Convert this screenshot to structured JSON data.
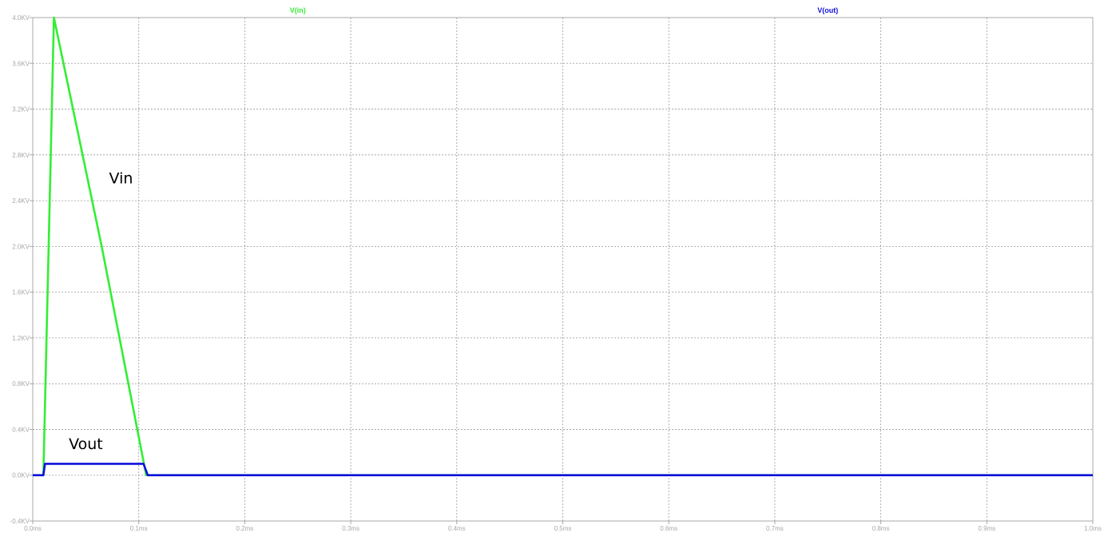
{
  "chart_data": {
    "type": "line",
    "xlim": [
      0,
      1.0
    ],
    "ylim": [
      -0.4,
      4.0
    ],
    "grid": true,
    "x_ticks": [
      0,
      0.1,
      0.2,
      0.3,
      0.4,
      0.5,
      0.6,
      0.7,
      0.8,
      0.9,
      1.0
    ],
    "x_tick_labels": [
      "0.0ms",
      "0.1ms",
      "0.2ms",
      "0.3ms",
      "0.4ms",
      "0.5ms",
      "0.6ms",
      "0.7ms",
      "0.8ms",
      "0.9ms",
      "1.0ms"
    ],
    "y_ticks": [
      -0.4,
      0.0,
      0.4,
      0.8,
      1.2,
      1.6,
      2.0,
      2.4,
      2.8,
      3.2,
      3.6,
      4.0
    ],
    "y_tick_labels": [
      "-0.4KV",
      "0.0KV",
      "0.4KV",
      "0.8KV",
      "1.2KV",
      "1.6KV",
      "2.0KV",
      "2.4KV",
      "2.8KV",
      "3.2KV",
      "3.6KV",
      "4.0KV"
    ],
    "series": [
      {
        "name": "V(in)",
        "color": "#33ee33",
        "points": [
          [
            0.0,
            0.0
          ],
          [
            0.01,
            0.0
          ],
          [
            0.02,
            4.0
          ],
          [
            0.065,
            2.0
          ],
          [
            0.107,
            0.0
          ],
          [
            1.0,
            0.0
          ]
        ]
      },
      {
        "name": "V(out)",
        "color": "#1010dd",
        "points": [
          [
            0.0,
            0.0
          ],
          [
            0.01,
            0.0
          ],
          [
            0.0115,
            0.1
          ],
          [
            0.1045,
            0.1
          ],
          [
            0.1085,
            0.0
          ],
          [
            1.0,
            0.0
          ]
        ]
      }
    ],
    "annotations": [
      {
        "text": "Vin",
        "x": 0.072,
        "y": 2.55
      },
      {
        "text": "Vout",
        "x": 0.034,
        "y": 0.23
      }
    ]
  }
}
